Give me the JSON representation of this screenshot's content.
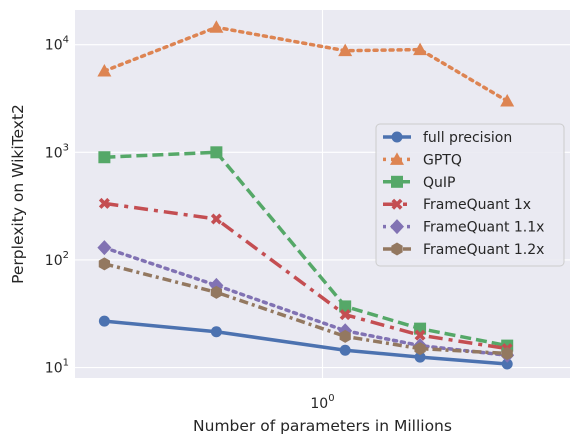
{
  "chart_data": {
    "type": "line",
    "xlabel": "Number of parameters in Millions",
    "ylabel": "Perplexity on WikiText2",
    "x_scale": "log",
    "y_scale": "log",
    "xlim": [
      0.125,
      8
    ],
    "ylim": [
      8,
      21000
    ],
    "grid": true,
    "legend_position": "center-right",
    "x_ticks": [
      {
        "value": 1,
        "label": "10^0"
      }
    ],
    "y_ticks": [
      {
        "value": 10,
        "label": "10^1"
      },
      {
        "value": 100,
        "label": "10^2"
      },
      {
        "value": 1000,
        "label": "10^3"
      },
      {
        "value": 10000,
        "label": "10^4"
      }
    ],
    "x": [
      0.16,
      0.41,
      1.21,
      2.27,
      4.72
    ],
    "series": [
      {
        "name": "full precision",
        "color": "#4c72b0",
        "marker": "circle",
        "dash": "solid",
        "values": [
          27,
          21.5,
          14.5,
          12.5,
          10.8
        ]
      },
      {
        "name": "GPTQ",
        "color": "#dd8452",
        "marker": "triangle",
        "dash": "dotted",
        "values": [
          5700,
          14500,
          8800,
          9000,
          3000
        ]
      },
      {
        "name": "QuIP",
        "color": "#55a868",
        "marker": "square",
        "dash": "dashed",
        "values": [
          900,
          1000,
          37,
          23,
          16
        ]
      },
      {
        "name": "FrameQuant 1x",
        "color": "#c44e52",
        "marker": "x",
        "dash": "dashdot",
        "values": [
          335,
          240,
          31,
          20,
          15
        ]
      },
      {
        "name": "FrameQuant 1.1x",
        "color": "#8172b3",
        "marker": "diamond",
        "dash": "dotted",
        "values": [
          130,
          58,
          22,
          16,
          13
        ]
      },
      {
        "name": "FrameQuant 1.2x",
        "color": "#937860",
        "marker": "hexagon",
        "dash": "dashdotted",
        "values": [
          92,
          50,
          19.5,
          15,
          13.5
        ]
      }
    ]
  }
}
